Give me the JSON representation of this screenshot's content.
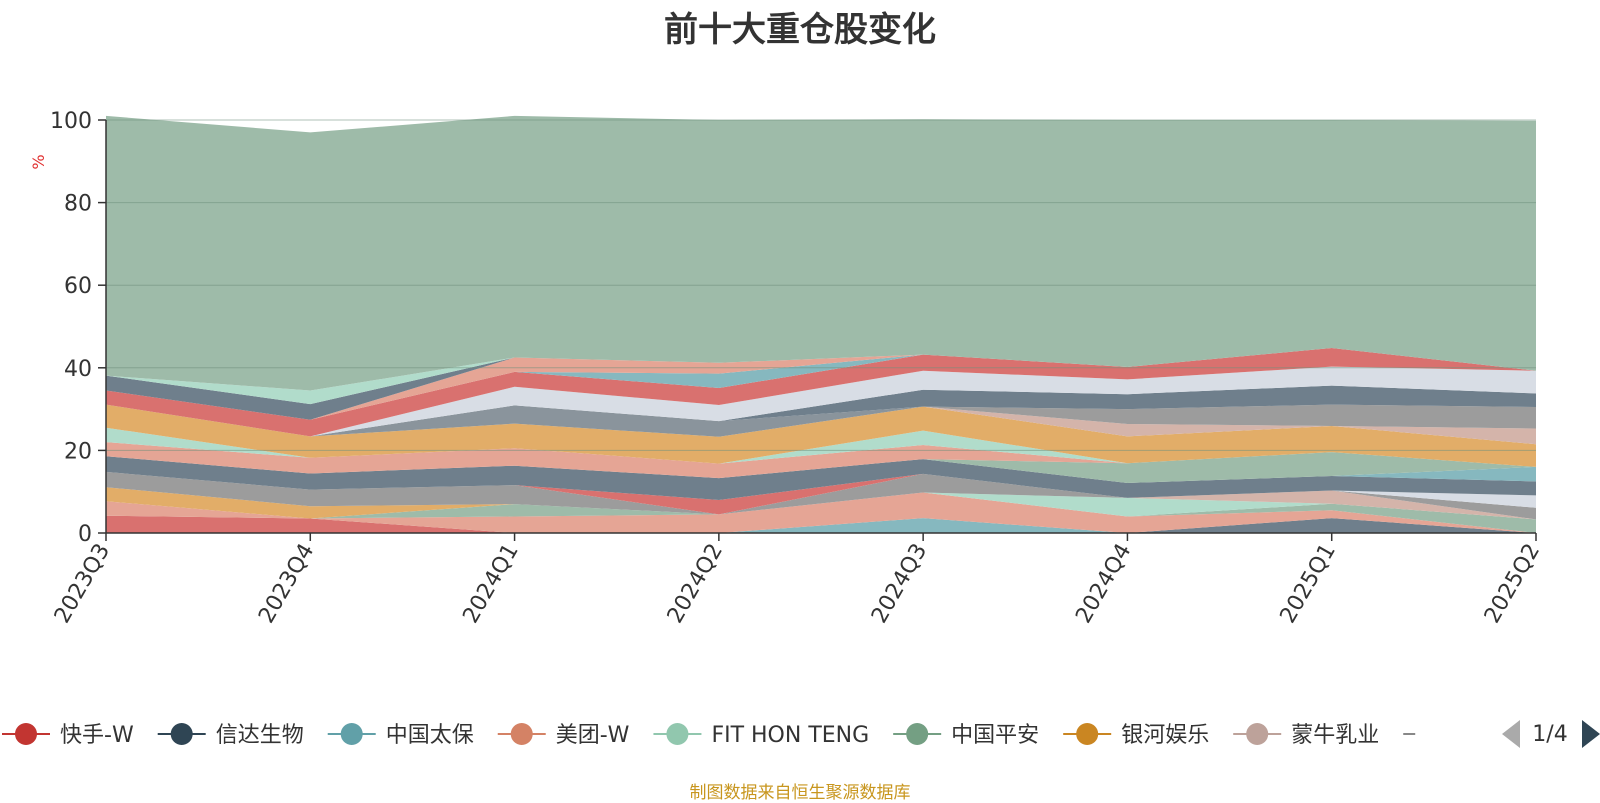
{
  "title": "前十大重仓股变化",
  "source_note": "制图数据来自恒生聚源数据库",
  "legend_page": "1/4",
  "chart_data": {
    "type": "area",
    "stacked": true,
    "title": "前十大重仓股变化",
    "xlabel": "",
    "ylabel": "%",
    "ylim": [
      0,
      100
    ],
    "yticks": [
      0,
      20,
      40,
      60,
      80,
      100
    ],
    "grid": true,
    "legend_position": "bottom",
    "categories": [
      "2023Q3",
      "2023Q4",
      "2024Q1",
      "2024Q2",
      "2024Q3",
      "2024Q4",
      "2025Q1",
      "2025Q2"
    ],
    "series": [
      {
        "color": "#9ebba9",
        "values": [
          0,
          0,
          0,
          0,
          0,
          0,
          0,
          0
        ]
      },
      {
        "color": "#d9716f",
        "values": [
          4.2,
          3.5,
          0,
          0,
          0,
          0,
          0,
          0
        ]
      },
      {
        "color": "#86b8bf",
        "values": [
          0,
          0,
          0,
          0,
          3.6,
          0,
          0,
          0
        ]
      },
      {
        "color": "#6f7f8c",
        "values": [
          0,
          0,
          0,
          0,
          0,
          0,
          3.6,
          0
        ]
      },
      {
        "color": "#e5a595",
        "values": [
          3.5,
          0,
          4.0,
          4.5,
          6.2,
          4.0,
          1.9,
          0
        ]
      },
      {
        "color": "#9ebba9",
        "values": [
          0,
          0,
          3.0,
          0,
          0,
          0,
          1.6,
          3.3
        ]
      },
      {
        "color": "#e2ad68",
        "values": [
          3.4,
          3.0,
          0,
          0,
          0,
          0,
          0,
          0
        ]
      },
      {
        "color": "#b1dccb",
        "values": [
          0,
          0,
          0,
          0,
          0,
          4.5,
          0,
          0
        ]
      },
      {
        "color": "#d4b4aa",
        "values": [
          0,
          0,
          0,
          0,
          0,
          0,
          3.2,
          0
        ]
      },
      {
        "color": "#9c9c9c",
        "values": [
          3.7,
          4.0,
          4.6,
          0,
          4.5,
          0,
          0,
          2.8
        ]
      },
      {
        "color": "#d9716f",
        "values": [
          0,
          0,
          0,
          3.5,
          0,
          0,
          0,
          0
        ]
      },
      {
        "color": "#d8dde5",
        "values": [
          0,
          0,
          0,
          0,
          0,
          0,
          0,
          3.0
        ]
      },
      {
        "color": "#6f7f8c",
        "values": [
          3.8,
          3.9,
          4.7,
          5.3,
          3.6,
          3.6,
          3.5,
          3.4
        ]
      },
      {
        "color": "#86b8bf",
        "values": [
          0,
          0,
          0,
          0,
          0,
          0,
          0,
          3.5
        ]
      },
      {
        "color": "#9ebba9",
        "values": [
          0,
          0,
          0,
          0,
          0,
          4.8,
          5.8,
          0
        ]
      },
      {
        "color": "#e5a595",
        "values": [
          3.4,
          3.8,
          4.2,
          3.5,
          3.4,
          0,
          0,
          0
        ]
      },
      {
        "color": "#b1dccb",
        "values": [
          3.5,
          0,
          0,
          0,
          3.5,
          0,
          0,
          0
        ]
      },
      {
        "color": "#e2ad68",
        "values": [
          5.6,
          5.2,
          6.0,
          6.5,
          5.8,
          6.5,
          6.3,
          5.5
        ]
      },
      {
        "color": "#d4b4aa",
        "values": [
          0,
          0,
          0,
          0,
          0,
          3.0,
          0,
          3.8
        ]
      },
      {
        "color": "#9c9c9c",
        "values": [
          0,
          0,
          0,
          0,
          0,
          3.6,
          5.2,
          5.2
        ]
      },
      {
        "color": "#8a949c",
        "values": [
          0,
          0,
          4.4,
          3.8,
          0,
          0,
          0,
          0
        ]
      },
      {
        "color": "#6f7f8c",
        "values": [
          0,
          0,
          0,
          0,
          4.1,
          3.6,
          4.6,
          3.3
        ]
      },
      {
        "color": "#d8dde5",
        "values": [
          0,
          0,
          4.5,
          3.9,
          4.6,
          3.6,
          4.6,
          5.5
        ]
      },
      {
        "color": "#d9716f",
        "values": [
          3.4,
          4.0,
          3.6,
          4.1,
          3.9,
          3.0,
          4.5,
          0
        ]
      },
      {
        "color": "#86b8bf",
        "values": [
          0,
          0,
          0,
          3.5,
          0,
          0,
          0,
          0
        ]
      },
      {
        "color": "#e5a595",
        "values": [
          0,
          0,
          3.5,
          2.6,
          0,
          0,
          0,
          0
        ]
      },
      {
        "color": "#6f7f8c",
        "values": [
          3.6,
          3.8,
          0,
          0,
          0,
          0,
          0,
          0
        ]
      },
      {
        "color": "#b1dccb",
        "values": [
          0,
          3.3,
          0,
          0,
          0,
          0,
          0,
          0
        ]
      },
      {
        "color": "#9ebba9",
        "values": [
          62.9,
          62.5,
          58.5,
          58.8,
          57.0,
          59.8,
          55.2,
          60.5
        ]
      }
    ],
    "legend": [
      {
        "name": "快手-W",
        "color": "#c23531"
      },
      {
        "name": "信达生物",
        "color": "#2f4554"
      },
      {
        "name": "中国太保",
        "color": "#61a0a8"
      },
      {
        "name": "美团-W",
        "color": "#d48265"
      },
      {
        "name": "FIT HON TENG",
        "color": "#91c7ae"
      },
      {
        "name": "中国平安",
        "color": "#749f83"
      },
      {
        "name": "银河娱乐",
        "color": "#ca8622"
      },
      {
        "name": "蒙牛乳业",
        "color": "#bda29a"
      }
    ]
  }
}
